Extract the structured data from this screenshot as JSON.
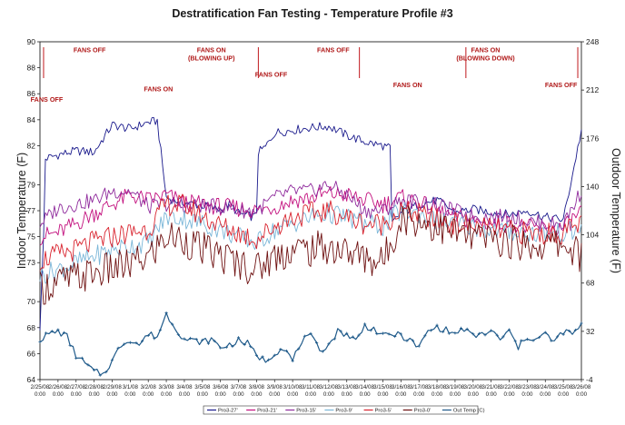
{
  "chart_data": {
    "type": "line",
    "title": "Destratification Fan Testing - Temperature Profile #3",
    "ylabel": "Indoor Temperature (F)",
    "y2label": "Outdoor Temperature (F)",
    "ylim": [
      64,
      90
    ],
    "y2lim": [
      -4,
      248
    ],
    "yticks": [
      "64",
      "66",
      "68",
      "70",
      "73",
      "75",
      "77",
      "79",
      "82",
      "84",
      "86",
      "88",
      "90"
    ],
    "y2ticks": [
      "-4",
      "32",
      "68",
      "104",
      "140",
      "176",
      "212",
      "248"
    ],
    "x_start_day": 0,
    "x_end_day": 30,
    "xticks": [
      "2/25/08",
      "2/26/08",
      "2/27/08",
      "2/28/08",
      "2/29/08",
      "3/1/08",
      "3/2/08",
      "3/3/08",
      "3/4/08",
      "3/5/08",
      "3/6/08",
      "3/7/08",
      "3/8/08",
      "3/9/08",
      "3/10/08",
      "3/11/08",
      "3/12/08",
      "3/13/08",
      "3/14/08",
      "3/15/08",
      "3/16/08",
      "3/17/08",
      "3/18/08",
      "3/19/08",
      "3/20/08",
      "3/21/08",
      "3/22/08",
      "3/23/08",
      "3/24/08",
      "3/25/08",
      "3/26/08"
    ],
    "xtick_time": "0:00",
    "markers_x": [
      0.2,
      12.1,
      17.7,
      23.6,
      29.8
    ],
    "annotations": [
      {
        "lines": [
          "FANS OFF"
        ],
        "day": 0.6,
        "value": 85.4
      },
      {
        "lines": [
          "FANS OFF"
        ],
        "day": 4.4,
        "value": 89.2
      },
      {
        "lines": [
          "FANS ON"
        ],
        "day": 10.5,
        "value": 86.2
      },
      {
        "lines": [
          "FANS ON",
          "(BLOWING UP)"
        ],
        "day": 15.2,
        "value": 89.2
      },
      {
        "lines": [
          "FANS OFF"
        ],
        "day": 20.5,
        "value": 87.3
      },
      {
        "lines": [
          "FANS OFF"
        ],
        "day": 26.0,
        "value": 89.2
      },
      {
        "lines": [
          "FANS ON"
        ],
        "day": 32.6,
        "value": 86.5
      },
      {
        "lines": [
          "FANS ON",
          "(BLOWING DOWN)"
        ],
        "day": 39.5,
        "value": 89.2
      },
      {
        "lines": [
          "FANS OFF"
        ],
        "day": 46.2,
        "value": 86.5
      }
    ],
    "series": [
      {
        "name": "Pro3-27'",
        "color": "#1a1a8c",
        "axis": "left",
        "x": [
          0,
          0.2,
          0.3,
          1,
          2,
          3,
          4,
          5,
          6,
          6.5,
          7,
          8,
          9,
          10,
          10.5,
          11,
          11.9,
          12.0,
          12.1,
          12.5,
          13,
          14,
          15,
          16,
          17,
          18,
          19,
          19.4,
          19.5,
          20,
          21,
          22,
          23,
          24,
          25,
          26,
          27,
          28,
          29,
          30
        ],
        "y": [
          68.0,
          75.0,
          81.0,
          81.3,
          81.6,
          81.5,
          83.6,
          83.3,
          83.8,
          83.9,
          78.0,
          77.6,
          77.4,
          77.1,
          77.5,
          76.8,
          76.5,
          77.0,
          81.5,
          81.9,
          83.0,
          83.2,
          83.4,
          83.5,
          82.8,
          82.3,
          82.0,
          81.8,
          76.0,
          76.8,
          77.5,
          77.8,
          76.9,
          77.1,
          76.9,
          76.7,
          77.0,
          76.5,
          76.3,
          83.2
        ]
      },
      {
        "name": "Pro3-21'",
        "color": "#c3107e",
        "axis": "left",
        "x": [
          0,
          1,
          2,
          3,
          4,
          5,
          6,
          7,
          8,
          9,
          10,
          11,
          12,
          13,
          14,
          15,
          16,
          17,
          18,
          19,
          20,
          21,
          22,
          23,
          24,
          25,
          26,
          27,
          28,
          29,
          30
        ],
        "y": [
          75.0,
          75.3,
          76.0,
          76.8,
          77.5,
          78.2,
          77.8,
          78.2,
          77.6,
          77.5,
          77.3,
          77.2,
          77.0,
          77.3,
          77.8,
          78.0,
          78.3,
          78.2,
          77.8,
          77.5,
          78.0,
          77.6,
          77.0,
          76.5,
          76.2,
          76.0,
          76.0,
          75.7,
          75.6,
          75.6,
          77.0
        ]
      },
      {
        "name": "Pro3-15'",
        "color": "#8f2a9c",
        "axis": "left",
        "x": [
          0,
          1,
          2,
          3,
          4,
          5,
          6,
          7,
          8,
          9,
          10,
          11,
          12,
          13,
          14,
          15,
          16,
          17,
          18,
          19,
          20,
          21,
          22,
          23,
          24,
          25,
          26,
          27,
          28,
          29,
          30
        ],
        "y": [
          76.0,
          77.2,
          77.5,
          77.8,
          78.5,
          78.5,
          77.3,
          77.5,
          77.3,
          77.4,
          77.3,
          77.0,
          77.0,
          78.0,
          78.5,
          78.5,
          79.0,
          78.2,
          77.0,
          77.0,
          77.8,
          77.7,
          77.4,
          77.0,
          76.6,
          76.5,
          76.6,
          76.2,
          76.0,
          76.0,
          78.5
        ]
      },
      {
        "name": "Pro3-9'",
        "color": "#7ab6d8",
        "axis": "left",
        "x": [
          0,
          1,
          2,
          3,
          4,
          5,
          6,
          7,
          8,
          9,
          10,
          11,
          12,
          13,
          14,
          15,
          16,
          17,
          18,
          19,
          20,
          21,
          22,
          23,
          24,
          25,
          26,
          27,
          28,
          29,
          30
        ],
        "y": [
          72.0,
          72.5,
          73.0,
          73.5,
          74.0,
          74.3,
          74.6,
          76.5,
          76.4,
          76.0,
          75.5,
          75.0,
          74.5,
          75.5,
          76.0,
          76.5,
          76.8,
          76.5,
          76.0,
          75.8,
          77.0,
          76.8,
          76.2,
          76.0,
          75.8,
          75.5,
          75.4,
          75.3,
          75.2,
          75.3,
          75.5
        ]
      },
      {
        "name": "Pro3-5'",
        "color": "#d9232e",
        "axis": "left",
        "x": [
          0,
          1,
          2,
          3,
          4,
          5,
          6,
          7,
          8,
          9,
          10,
          11,
          12,
          13,
          14,
          15,
          16,
          17,
          18,
          19,
          20,
          21,
          22,
          23,
          24,
          25,
          26,
          27,
          28,
          29,
          30
        ],
        "y": [
          73.2,
          73.6,
          74.0,
          74.6,
          75.0,
          75.3,
          75.6,
          77.5,
          77.4,
          76.6,
          75.8,
          75.3,
          74.8,
          75.8,
          76.5,
          76.8,
          77.0,
          76.5,
          76.0,
          76.0,
          77.0,
          76.7,
          76.3,
          76.0,
          75.8,
          75.6,
          75.4,
          75.3,
          75.2,
          75.3,
          76.0
        ]
      },
      {
        "name": "Pro3-0'",
        "color": "#6e1010",
        "axis": "left",
        "x": [
          0,
          1,
          2,
          3,
          4,
          5,
          6,
          7,
          8,
          9,
          10,
          11,
          12,
          13,
          14,
          15,
          16,
          17,
          18,
          19,
          20,
          21,
          22,
          23,
          24,
          25,
          26,
          27,
          28,
          29,
          30
        ],
        "y": [
          71.0,
          71.5,
          71.8,
          72.2,
          72.5,
          72.8,
          73.4,
          75.0,
          74.8,
          74.0,
          73.5,
          73.0,
          72.5,
          73.5,
          74.0,
          74.0,
          74.2,
          73.8,
          73.4,
          73.0,
          76.5,
          76.2,
          75.8,
          75.3,
          75.0,
          74.8,
          74.6,
          74.4,
          74.3,
          74.5,
          73.5
        ]
      },
      {
        "name": "Out Temp (C)",
        "color": "#1f5a8a",
        "axis": "right",
        "x": [
          0,
          0.5,
          1,
          1.5,
          2,
          2.5,
          3,
          3.5,
          4,
          4.5,
          5,
          5.5,
          6,
          6.5,
          7,
          7.5,
          8,
          8.5,
          9,
          9.5,
          10,
          10.5,
          11,
          11.5,
          12,
          12.5,
          13,
          13.5,
          14,
          14.5,
          15,
          15.5,
          16,
          16.5,
          17,
          17.5,
          18,
          18.5,
          19,
          19.5,
          20,
          20.5,
          21,
          21.5,
          22,
          22.5,
          23,
          23.5,
          24,
          24.5,
          25,
          25.5,
          26,
          26.5,
          27,
          27.5,
          28,
          28.5,
          29,
          29.5,
          30
        ],
        "y": [
          26,
          30,
          32,
          28,
          14,
          8,
          2,
          0,
          10,
          22,
          26,
          22,
          30,
          28,
          45,
          35,
          26,
          25,
          24,
          26,
          20,
          22,
          25,
          23,
          14,
          10,
          16,
          20,
          10,
          25,
          28,
          18,
          22,
          32,
          30,
          25,
          36,
          34,
          28,
          30,
          29,
          25,
          20,
          32,
          35,
          33,
          30,
          34,
          28,
          30,
          32,
          26,
          32,
          20,
          28,
          26,
          30,
          24,
          32,
          30,
          36
        ]
      }
    ],
    "legend": [
      "Pro3-27'",
      "Pro3-21'",
      "Pro3-15'",
      "Pro3-9'",
      "Pro3-5'",
      "Pro3-0'",
      "Out Temp (C)"
    ],
    "legend_position": "bottom-center",
    "grid": false
  }
}
